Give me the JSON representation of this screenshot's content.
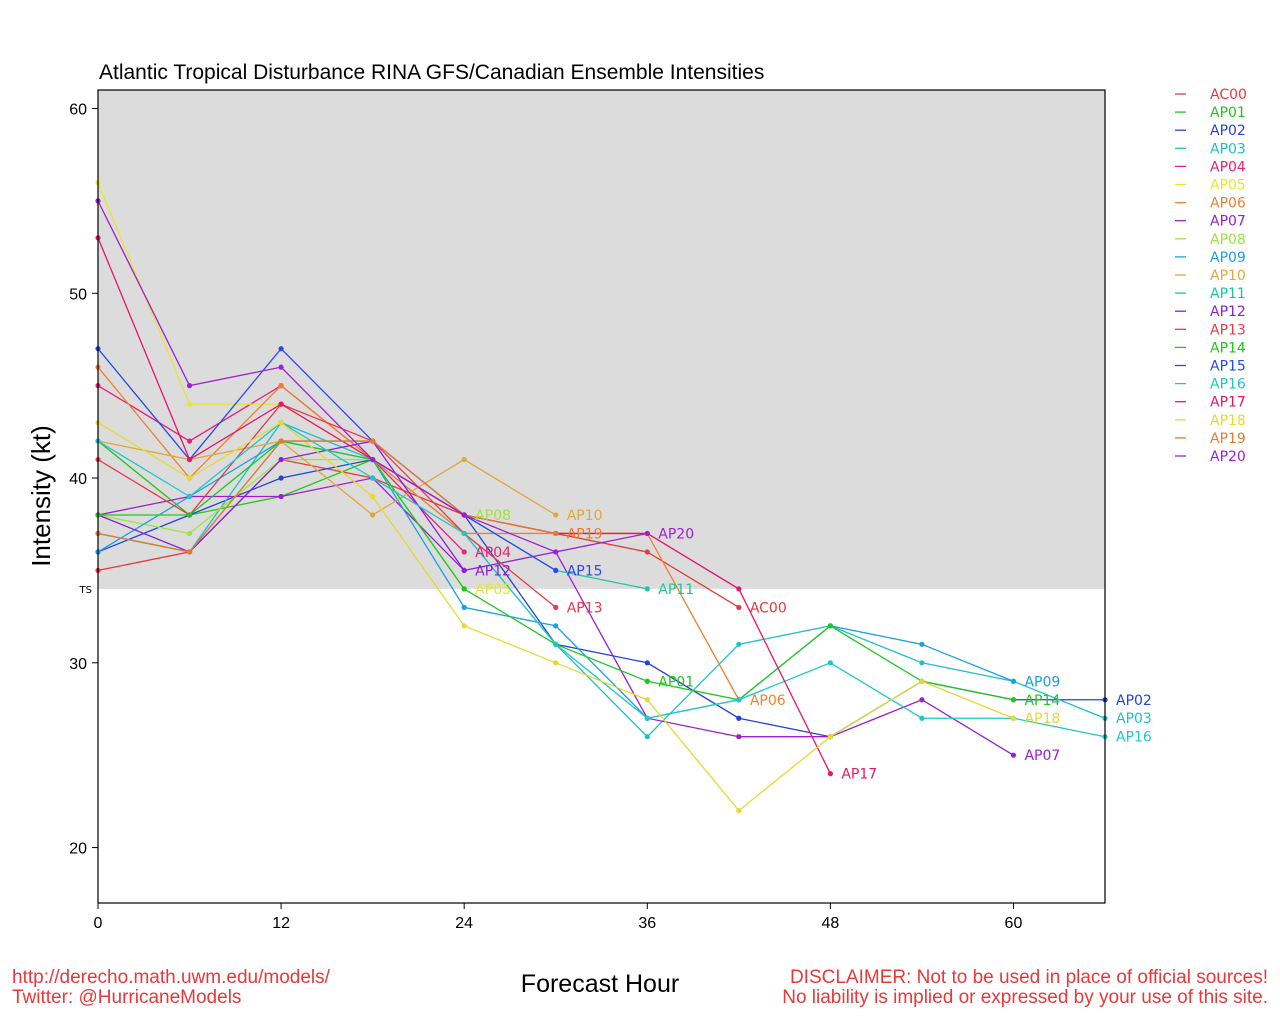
{
  "footer": {
    "url": "http://derecho.math.uwm.edu/models/",
    "twitter": "Twitter: @HurricaneModels",
    "disclaimer1": "DISCLAIMER: Not to be used in place of official sources!",
    "disclaimer2": "No liability is implied or expressed by your use of this site."
  },
  "chart_data": {
    "type": "line",
    "title": "Atlantic Tropical Disturbance RINA GFS/Canadian Ensemble Intensities",
    "xlabel": "Forecast Hour",
    "ylabel": "Intensity (kt)",
    "xlim": [
      0,
      66
    ],
    "ylim": [
      17,
      61
    ],
    "xticks": [
      0,
      12,
      24,
      36,
      48,
      60
    ],
    "yticks": [
      20,
      30,
      40,
      50,
      60
    ],
    "ts_threshold": 34,
    "ts_label": "TS",
    "ts_band_color": "#dcdcdc",
    "legend_position": "right",
    "x": [
      0,
      6,
      12,
      18,
      24,
      30,
      36,
      42,
      48,
      54,
      60,
      66
    ],
    "series": [
      {
        "name": "AC00",
        "color": "#e8383a",
        "values": [
          35,
          36,
          41,
          40,
          38,
          37,
          36,
          33,
          null,
          null,
          null,
          null
        ]
      },
      {
        "name": "AP01",
        "color": "#22c51b",
        "values": [
          42,
          38,
          39,
          41,
          34,
          null,
          29,
          null,
          null,
          null,
          null,
          null
        ]
      },
      {
        "name": "AP02",
        "color": "#2244d8",
        "values": [
          36,
          38,
          40,
          41,
          38,
          31,
          30,
          27,
          26,
          29,
          28,
          28
        ]
      },
      {
        "name": "AP03",
        "color": "#20bfc8",
        "values": [
          37,
          36,
          43,
          41,
          37,
          31,
          26,
          31,
          32,
          30,
          29,
          27
        ]
      },
      {
        "name": "AP04",
        "color": "#e8217a",
        "values": [
          45,
          42,
          45,
          41,
          36,
          null,
          null,
          null,
          null,
          null,
          null,
          null
        ]
      },
      {
        "name": "AP05",
        "color": "#e6e630",
        "values": [
          56,
          44,
          44,
          41,
          34,
          null,
          null,
          null,
          null,
          null,
          null,
          null
        ]
      },
      {
        "name": "AP06",
        "color": "#f08030",
        "values": [
          46,
          40,
          45,
          41,
          37,
          37,
          37,
          28,
          null,
          null,
          null,
          null
        ]
      },
      {
        "name": "AP07",
        "color": "#9b1fcf",
        "values": [
          38,
          39,
          39,
          40,
          35,
          36,
          27,
          26,
          26,
          28,
          25,
          null
        ]
      },
      {
        "name": "AP08",
        "color": "#9be63c",
        "values": [
          38,
          37,
          41,
          41,
          38,
          null,
          null,
          null,
          null,
          null,
          null,
          null
        ]
      },
      {
        "name": "AP09",
        "color": "#1aa0e6",
        "values": [
          36,
          39,
          42,
          41,
          33,
          32,
          27,
          28,
          32,
          31,
          29,
          null
        ]
      },
      {
        "name": "AP10",
        "color": "#e0a83a",
        "values": [
          42,
          41,
          42,
          38,
          41,
          38,
          null,
          null,
          null,
          null,
          null,
          null
        ]
      },
      {
        "name": "AP11",
        "color": "#1bc89a",
        "values": [
          37,
          36,
          42,
          42,
          38,
          35,
          34,
          null,
          null,
          null,
          null,
          null
        ]
      },
      {
        "name": "AP12",
        "color": "#8a1fd8",
        "values": [
          38,
          36,
          41,
          42,
          35,
          null,
          null,
          null,
          null,
          null,
          null,
          null
        ]
      },
      {
        "name": "AP13",
        "color": "#e83a4a",
        "values": [
          41,
          38,
          44,
          42,
          37,
          33,
          null,
          null,
          null,
          null,
          null,
          null
        ]
      },
      {
        "name": "AP14",
        "color": "#1fc81f",
        "values": [
          38,
          38,
          42,
          41,
          34,
          31,
          29,
          28,
          32,
          29,
          28,
          null
        ]
      },
      {
        "name": "AP15",
        "color": "#2a4ae8",
        "values": [
          47,
          41,
          47,
          42,
          38,
          35,
          null,
          null,
          null,
          null,
          null,
          null
        ]
      },
      {
        "name": "AP16",
        "color": "#1fc8c8",
        "values": [
          42,
          39,
          43,
          40,
          37,
          31,
          27,
          28,
          30,
          27,
          27,
          26
        ]
      },
      {
        "name": "AP17",
        "color": "#e8156a",
        "values": [
          53,
          41,
          44,
          41,
          38,
          37,
          37,
          34,
          24,
          null,
          null,
          null
        ]
      },
      {
        "name": "AP18",
        "color": "#e8d830",
        "values": [
          43,
          40,
          43,
          39,
          32,
          30,
          28,
          22,
          26,
          29,
          27,
          null
        ]
      },
      {
        "name": "AP19",
        "color": "#e87a30",
        "values": [
          37,
          36,
          42,
          42,
          38,
          37,
          null,
          null,
          null,
          null,
          null,
          null
        ]
      },
      {
        "name": "AP20",
        "color": "#a01fd0",
        "values": [
          55,
          45,
          46,
          41,
          38,
          36,
          37,
          null,
          null,
          null,
          null,
          null
        ]
      }
    ]
  }
}
